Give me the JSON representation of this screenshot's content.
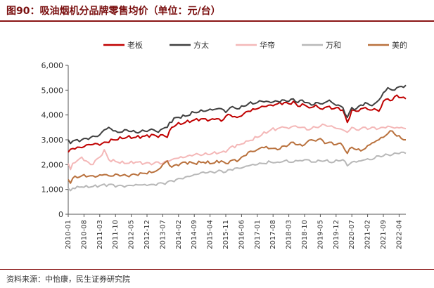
{
  "header": {
    "title": "图90：吸油烟机分品牌零售均价（单位：元/台）"
  },
  "footer": {
    "source": "资料来源：中怡康，民生证券研究院"
  },
  "chart_data": {
    "type": "line",
    "title": "吸油烟机分品牌零售均价（单位：元/台）",
    "xlabel": "",
    "ylabel": "",
    "ylim": [
      0,
      6000
    ],
    "yticks": [
      0,
      1000,
      2000,
      3000,
      4000,
      5000,
      6000
    ],
    "ytick_labels": [
      "0",
      "1,000",
      "2,000",
      "3,000",
      "4,000",
      "5,000",
      "6,000"
    ],
    "xtick_labels": [
      "2010-01",
      "2010-08",
      "2011-03",
      "2011-10",
      "2012-05",
      "2012-12",
      "2013-07",
      "2014-02",
      "2014-09",
      "2015-04",
      "2015-11",
      "2016-06",
      "2017-01",
      "2017-08",
      "2018-03",
      "2018-10",
      "2019-05",
      "2019-12",
      "2020-07",
      "2021-02",
      "2021-09",
      "2022-04"
    ],
    "x_start": "2010-01",
    "x_end": "2022-06",
    "legend_position": "top-center",
    "series": [
      {
        "name": "老板",
        "color": "#c00000",
        "anchors": [
          [
            0,
            2500
          ],
          [
            2,
            2650
          ],
          [
            5,
            2700
          ],
          [
            10,
            2800
          ],
          [
            15,
            2850
          ],
          [
            20,
            3000
          ],
          [
            26,
            3100
          ],
          [
            30,
            3100
          ],
          [
            34,
            3150
          ],
          [
            38,
            3200
          ],
          [
            40,
            3100
          ],
          [
            42,
            3200
          ],
          [
            44,
            3100
          ],
          [
            46,
            3500
          ],
          [
            48,
            3600
          ],
          [
            52,
            3700
          ],
          [
            56,
            3800
          ],
          [
            60,
            3850
          ],
          [
            63,
            3800
          ],
          [
            66,
            3850
          ],
          [
            68,
            3750
          ],
          [
            70,
            3950
          ],
          [
            72,
            4000
          ],
          [
            75,
            3900
          ],
          [
            78,
            4050
          ],
          [
            80,
            4150
          ],
          [
            84,
            4250
          ],
          [
            86,
            4350
          ],
          [
            90,
            4400
          ],
          [
            93,
            4450
          ],
          [
            96,
            4500
          ],
          [
            98,
            4450
          ],
          [
            100,
            4550
          ],
          [
            102,
            4350
          ],
          [
            104,
            4450
          ],
          [
            106,
            4350
          ],
          [
            108,
            4300
          ],
          [
            110,
            4400
          ],
          [
            112,
            4250
          ],
          [
            114,
            4300
          ],
          [
            116,
            4350
          ],
          [
            118,
            4250
          ],
          [
            120,
            4300
          ],
          [
            122,
            4200
          ],
          [
            124,
            3700
          ],
          [
            126,
            4200
          ],
          [
            128,
            4150
          ],
          [
            130,
            4250
          ],
          [
            132,
            4300
          ],
          [
            134,
            4200
          ],
          [
            136,
            4250
          ],
          [
            138,
            4150
          ],
          [
            140,
            4550
          ],
          [
            142,
            4650
          ],
          [
            144,
            4600
          ],
          [
            146,
            4800
          ],
          [
            148,
            4700
          ],
          [
            150,
            4650
          ]
        ]
      },
      {
        "name": "方太",
        "color": "#404040",
        "anchors": [
          [
            0,
            3000
          ],
          [
            1,
            2850
          ],
          [
            2,
            2950
          ],
          [
            6,
            3000
          ],
          [
            10,
            3100
          ],
          [
            14,
            3200
          ],
          [
            16,
            3400
          ],
          [
            18,
            3500
          ],
          [
            22,
            3300
          ],
          [
            26,
            3400
          ],
          [
            30,
            3300
          ],
          [
            34,
            3350
          ],
          [
            38,
            3400
          ],
          [
            40,
            3300
          ],
          [
            42,
            3450
          ],
          [
            44,
            3500
          ],
          [
            45,
            3700
          ],
          [
            48,
            3900
          ],
          [
            52,
            3950
          ],
          [
            56,
            4100
          ],
          [
            60,
            4150
          ],
          [
            64,
            4200
          ],
          [
            68,
            4250
          ],
          [
            70,
            4100
          ],
          [
            72,
            4300
          ],
          [
            76,
            4250
          ],
          [
            78,
            4350
          ],
          [
            80,
            4450
          ],
          [
            84,
            4500
          ],
          [
            86,
            4550
          ],
          [
            90,
            4500
          ],
          [
            93,
            4550
          ],
          [
            96,
            4600
          ],
          [
            98,
            4550
          ],
          [
            100,
            4650
          ],
          [
            102,
            4500
          ],
          [
            104,
            4600
          ],
          [
            106,
            4500
          ],
          [
            108,
            4400
          ],
          [
            110,
            4500
          ],
          [
            112,
            4450
          ],
          [
            114,
            4500
          ],
          [
            116,
            4600
          ],
          [
            118,
            4450
          ],
          [
            120,
            4400
          ],
          [
            122,
            4300
          ],
          [
            124,
            3900
          ],
          [
            126,
            4300
          ],
          [
            128,
            4250
          ],
          [
            130,
            4400
          ],
          [
            132,
            4500
          ],
          [
            134,
            4400
          ],
          [
            136,
            4450
          ],
          [
            138,
            4600
          ],
          [
            140,
            4900
          ],
          [
            142,
            5100
          ],
          [
            144,
            5000
          ],
          [
            146,
            5100
          ],
          [
            148,
            5150
          ],
          [
            150,
            5200
          ]
        ]
      },
      {
        "name": "华帝",
        "color": "#f4b8b8",
        "anchors": [
          [
            0,
            2050
          ],
          [
            1,
            1800
          ],
          [
            2,
            2050
          ],
          [
            6,
            2300
          ],
          [
            10,
            2000
          ],
          [
            14,
            2300
          ],
          [
            16,
            2600
          ],
          [
            18,
            2200
          ],
          [
            22,
            2100
          ],
          [
            26,
            2050
          ],
          [
            30,
            2100
          ],
          [
            34,
            2050
          ],
          [
            38,
            2050
          ],
          [
            40,
            2100
          ],
          [
            42,
            2050
          ],
          [
            44,
            2150
          ],
          [
            46,
            2200
          ],
          [
            48,
            2250
          ],
          [
            52,
            2300
          ],
          [
            56,
            2400
          ],
          [
            60,
            2400
          ],
          [
            64,
            2450
          ],
          [
            68,
            2500
          ],
          [
            70,
            2500
          ],
          [
            72,
            2700
          ],
          [
            76,
            2800
          ],
          [
            78,
            2850
          ],
          [
            80,
            2950
          ],
          [
            84,
            3100
          ],
          [
            86,
            3200
          ],
          [
            90,
            3400
          ],
          [
            93,
            3450
          ],
          [
            96,
            3500
          ],
          [
            98,
            3450
          ],
          [
            100,
            3550
          ],
          [
            102,
            3500
          ],
          [
            104,
            3500
          ],
          [
            106,
            3400
          ],
          [
            108,
            3450
          ],
          [
            110,
            3500
          ],
          [
            112,
            3550
          ],
          [
            114,
            3600
          ],
          [
            116,
            3550
          ],
          [
            118,
            3500
          ],
          [
            120,
            3450
          ],
          [
            122,
            3400
          ],
          [
            124,
            3300
          ],
          [
            126,
            3500
          ],
          [
            128,
            3400
          ],
          [
            130,
            3450
          ],
          [
            132,
            3500
          ],
          [
            134,
            3450
          ],
          [
            136,
            3500
          ],
          [
            138,
            3450
          ],
          [
            140,
            3500
          ],
          [
            142,
            3550
          ],
          [
            144,
            3500
          ],
          [
            146,
            3500
          ],
          [
            148,
            3500
          ],
          [
            150,
            3450
          ]
        ]
      },
      {
        "name": "万和",
        "color": "#b8b8b8",
        "anchors": [
          [
            0,
            1050
          ],
          [
            1,
            950
          ],
          [
            2,
            1050
          ],
          [
            6,
            1100
          ],
          [
            10,
            1100
          ],
          [
            14,
            1150
          ],
          [
            18,
            1200
          ],
          [
            22,
            1150
          ],
          [
            26,
            1150
          ],
          [
            30,
            1200
          ],
          [
            34,
            1200
          ],
          [
            38,
            1200
          ],
          [
            40,
            1250
          ],
          [
            42,
            1250
          ],
          [
            44,
            1300
          ],
          [
            46,
            1350
          ],
          [
            48,
            1400
          ],
          [
            52,
            1500
          ],
          [
            56,
            1600
          ],
          [
            60,
            1700
          ],
          [
            64,
            1700
          ],
          [
            68,
            1750
          ],
          [
            70,
            1700
          ],
          [
            72,
            1800
          ],
          [
            76,
            1850
          ],
          [
            78,
            1900
          ],
          [
            80,
            1950
          ],
          [
            84,
            2000
          ],
          [
            86,
            2050
          ],
          [
            90,
            2100
          ],
          [
            93,
            2100
          ],
          [
            96,
            2150
          ],
          [
            98,
            2100
          ],
          [
            100,
            2100
          ],
          [
            102,
            2150
          ],
          [
            104,
            2150
          ],
          [
            106,
            2200
          ],
          [
            108,
            2100
          ],
          [
            110,
            2100
          ],
          [
            112,
            2150
          ],
          [
            114,
            2150
          ],
          [
            116,
            2100
          ],
          [
            118,
            2100
          ],
          [
            120,
            2150
          ],
          [
            122,
            2200
          ],
          [
            124,
            1950
          ],
          [
            126,
            2100
          ],
          [
            128,
            2100
          ],
          [
            130,
            2150
          ],
          [
            132,
            2200
          ],
          [
            134,
            2200
          ],
          [
            136,
            2250
          ],
          [
            138,
            2350
          ],
          [
            140,
            2350
          ],
          [
            142,
            2400
          ],
          [
            144,
            2400
          ],
          [
            146,
            2450
          ],
          [
            148,
            2500
          ],
          [
            150,
            2450
          ]
        ]
      },
      {
        "name": "美的",
        "color": "#b9713d",
        "anchors": [
          [
            0,
            1400
          ],
          [
            1,
            1250
          ],
          [
            2,
            1450
          ],
          [
            6,
            1550
          ],
          [
            10,
            1550
          ],
          [
            12,
            1500
          ],
          [
            16,
            1600
          ],
          [
            18,
            1550
          ],
          [
            22,
            1600
          ],
          [
            26,
            1550
          ],
          [
            30,
            1600
          ],
          [
            34,
            1650
          ],
          [
            38,
            1700
          ],
          [
            40,
            1800
          ],
          [
            42,
            2000
          ],
          [
            44,
            2150
          ],
          [
            46,
            1900
          ],
          [
            48,
            2000
          ],
          [
            50,
            2050
          ],
          [
            52,
            2100
          ],
          [
            56,
            2050
          ],
          [
            60,
            2100
          ],
          [
            64,
            2050
          ],
          [
            68,
            2150
          ],
          [
            70,
            2050
          ],
          [
            72,
            2150
          ],
          [
            76,
            2200
          ],
          [
            78,
            2350
          ],
          [
            80,
            2500
          ],
          [
            84,
            2600
          ],
          [
            86,
            2700
          ],
          [
            90,
            2650
          ],
          [
            93,
            2600
          ],
          [
            96,
            2750
          ],
          [
            98,
            2800
          ],
          [
            100,
            2900
          ],
          [
            102,
            2800
          ],
          [
            104,
            2750
          ],
          [
            106,
            2900
          ],
          [
            108,
            3000
          ],
          [
            110,
            2950
          ],
          [
            112,
            3050
          ],
          [
            114,
            2850
          ],
          [
            116,
            2900
          ],
          [
            118,
            2800
          ],
          [
            120,
            2850
          ],
          [
            122,
            2750
          ],
          [
            124,
            2450
          ],
          [
            126,
            2700
          ],
          [
            128,
            2600
          ],
          [
            130,
            2550
          ],
          [
            132,
            2650
          ],
          [
            134,
            2800
          ],
          [
            136,
            2900
          ],
          [
            138,
            3000
          ],
          [
            140,
            3100
          ],
          [
            142,
            3250
          ],
          [
            144,
            3350
          ],
          [
            146,
            3150
          ],
          [
            148,
            3050
          ],
          [
            150,
            3000
          ]
        ]
      }
    ]
  }
}
